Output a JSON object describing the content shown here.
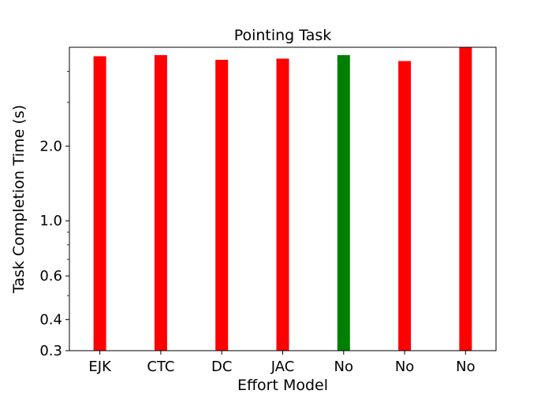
{
  "chart_data": {
    "type": "bar",
    "title": "Pointing Task",
    "xlabel": "Effort Model",
    "ylabel": "Task Completion Time (s)",
    "yscale": "log",
    "ylim": [
      0.3,
      5.0
    ],
    "yticks": [
      0.3,
      0.4,
      0.6,
      1.0,
      2.0
    ],
    "ytick_labels": [
      "0.3",
      "0.4",
      "0.6",
      "1.0",
      "2.0"
    ],
    "yminor_ticks": [
      0.5,
      0.7,
      0.8,
      0.9,
      3.0,
      4.0
    ],
    "grid": false,
    "categories": [
      "EJK",
      "CTC",
      "DC",
      "JAC",
      "No",
      "No",
      "No"
    ],
    "values": [
      4.6,
      4.65,
      4.45,
      4.5,
      4.65,
      4.4,
      5.0
    ],
    "colors": [
      "#ff0000",
      "#ff0000",
      "#ff0000",
      "#ff0000",
      "#008000",
      "#ff0000",
      "#ff0000"
    ]
  }
}
